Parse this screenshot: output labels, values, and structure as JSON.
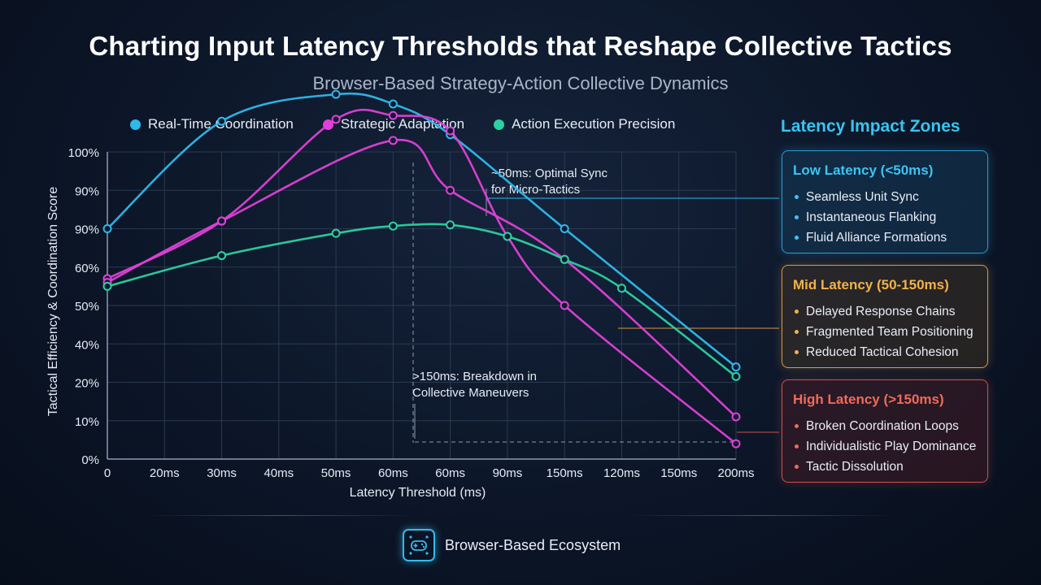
{
  "header": {
    "title": "Charting Input Latency Thresholds that Reshape Collective Tactics",
    "subtitle": "Browser-Based Strategy-Action Collective Dynamics"
  },
  "legend": [
    {
      "label": "Real-Time Coordination",
      "color": "#2fb8ea"
    },
    {
      "label": "Strategic Adaptation",
      "color": "#e040d8"
    },
    {
      "label": "Action Execution Precision",
      "color": "#2cd1a0"
    }
  ],
  "chart_data": {
    "type": "line",
    "xlabel": "Latency Threshold (ms)",
    "ylabel": "Tactical Efficiency & Coordination Score",
    "categories": [
      "0",
      "20ms",
      "30ms",
      "40ms",
      "50ms",
      "60ms",
      "60ms",
      "90ms",
      "150ms",
      "120ms",
      "150ms",
      "200ms"
    ],
    "y_tick_labels": [
      "0%",
      "10%",
      "20%",
      "40%",
      "50%",
      "60%",
      "90%",
      "90%",
      "100%"
    ],
    "grid": true,
    "legend_position": "top",
    "series": [
      {
        "name": "Real-Time Coordination",
        "color": "#2fb8ea",
        "points": [
          {
            "x": 0,
            "y": 60
          },
          {
            "x": 2,
            "y": 88
          },
          {
            "x": 4,
            "y": 95
          },
          {
            "x": 5,
            "y": 92.5
          },
          {
            "x": 6,
            "y": 84.5
          },
          {
            "x": 8,
            "y": 60
          },
          {
            "x": 11,
            "y": 24
          }
        ]
      },
      {
        "name": "Strategic Adaptation",
        "color": "#e040d8",
        "points": [
          {
            "x": 0,
            "y": 47
          },
          {
            "x": 2,
            "y": 62
          },
          {
            "x": 4,
            "y": 88.5
          },
          {
            "x": 5,
            "y": 89.5
          },
          {
            "x": 6,
            "y": 85.5
          },
          {
            "x": 7,
            "y": 58
          },
          {
            "x": 8,
            "y": 40
          },
          {
            "x": 11,
            "y": 4
          }
        ]
      },
      {
        "name": "Strategic Adaptation (inner)",
        "color": "#e040d8",
        "points": [
          {
            "x": 0,
            "y": 46
          },
          {
            "x": 2,
            "y": 62
          },
          {
            "x": 5,
            "y": 83
          },
          {
            "x": 6,
            "y": 70
          },
          {
            "x": 8,
            "y": 52
          },
          {
            "x": 11,
            "y": 11
          }
        ]
      },
      {
        "name": "Action Execution Precision",
        "color": "#2cd1a0",
        "points": [
          {
            "x": 0,
            "y": 45
          },
          {
            "x": 2,
            "y": 53
          },
          {
            "x": 4,
            "y": 58.8
          },
          {
            "x": 5,
            "y": 60.7
          },
          {
            "x": 6,
            "y": 61
          },
          {
            "x": 7,
            "y": 58
          },
          {
            "x": 8,
            "y": 52
          },
          {
            "x": 9,
            "y": 44.5
          },
          {
            "x": 11,
            "y": 21.5
          }
        ]
      }
    ],
    "annotations": [
      {
        "text": "~50ms: Optimal Sync\nfor Micro-Tactics"
      },
      {
        "text": ">150ms: Breakdown in\nCollective Maneuvers"
      }
    ]
  },
  "zones": {
    "title": "Latency Impact Zones",
    "low": {
      "heading": "Low Latency (<50ms)",
      "items": [
        "Seamless Unit Sync",
        "Instantaneous Flanking",
        "Fluid Alliance Formations"
      ]
    },
    "mid": {
      "heading": "Mid Latency (50-150ms)",
      "items": [
        "Delayed Response Chains",
        "Fragmented Team Positioning",
        "Reduced Tactical Cohesion"
      ]
    },
    "high": {
      "heading": "High Latency (>150ms)",
      "items": [
        "Broken Coordination Loops",
        "Individualistic Play Dominance",
        "Tactic Dissolution"
      ]
    }
  },
  "footer": {
    "label": "Browser-Based Ecosystem",
    "icon": "gamepad-network-icon"
  }
}
